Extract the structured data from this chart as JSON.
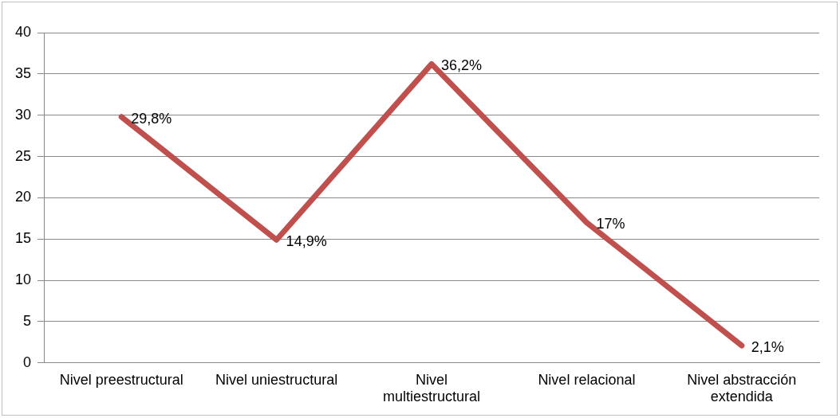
{
  "chart_data": {
    "type": "line",
    "categories": [
      "Nivel preestructural",
      "Nivel uniestructural",
      "Nivel multiestructural",
      "Nivel relacional",
      "Nivel abstracción extendida"
    ],
    "series": [
      {
        "color": "#c0504d",
        "values": [
          29.8,
          14.9,
          36.2,
          17,
          2.1
        ],
        "value_labels": [
          "29,8%",
          "14,9%",
          "36,2%",
          "17%",
          "2,1%"
        ]
      }
    ],
    "ylim": [
      0,
      40
    ],
    "yticks": [
      0,
      5,
      10,
      15,
      20,
      25,
      30,
      35,
      40
    ],
    "grid": "y",
    "legend": false,
    "marker": "none",
    "line_style": "solid"
  }
}
